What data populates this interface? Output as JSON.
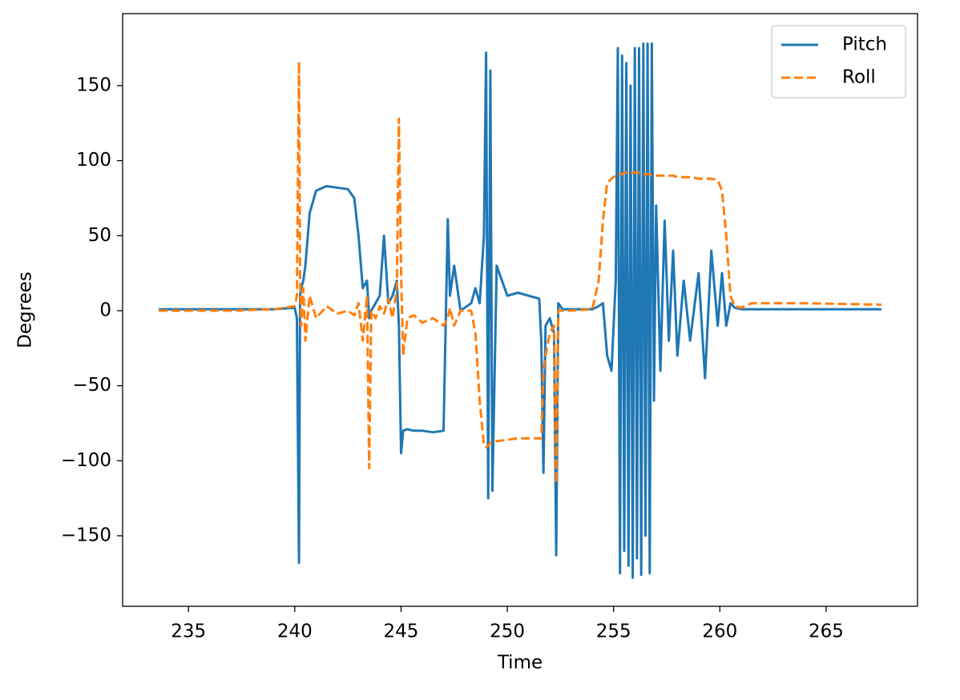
{
  "chart_data": {
    "type": "line",
    "xlabel": "Time",
    "ylabel": "Degrees",
    "x": [
      233.6,
      235,
      237,
      239,
      240.0,
      240.1,
      240.2,
      240.25,
      240.3,
      240.4,
      240.5,
      240.7,
      241.0,
      241.5,
      242.0,
      242.5,
      242.8,
      243.0,
      243.2,
      243.4,
      243.5,
      243.6,
      243.8,
      244.0,
      244.2,
      244.4,
      244.6,
      244.8,
      244.9,
      245.0,
      245.1,
      245.3,
      245.6,
      246.0,
      246.5,
      247.0,
      247.2,
      247.3,
      247.5,
      247.8,
      248.0,
      248.3,
      248.5,
      248.7,
      248.9,
      249.0,
      249.1,
      249.2,
      249.3,
      249.5,
      250.0,
      250.5,
      251.0,
      251.5,
      251.6,
      251.7,
      251.8,
      252.0,
      252.2,
      252.3,
      252.4,
      252.6,
      253.0,
      254.0,
      254.3,
      254.5,
      254.7,
      254.9,
      255.1,
      255.2,
      255.3,
      255.4,
      255.5,
      255.6,
      255.7,
      255.8,
      255.9,
      256.0,
      256.1,
      256.2,
      256.3,
      256.4,
      256.5,
      256.6,
      256.7,
      256.8,
      256.9,
      257.0,
      257.2,
      257.4,
      257.6,
      257.8,
      258.0,
      258.3,
      258.6,
      259.0,
      259.3,
      259.6,
      259.9,
      260.1,
      260.3,
      260.5,
      260.7,
      261.0,
      261.5,
      262,
      264,
      267.6
    ],
    "series": [
      {
        "name": "Pitch",
        "color": "#1f77b4",
        "dash": "solid",
        "values": [
          1,
          1,
          1,
          1,
          2,
          -5,
          -168,
          10,
          15,
          20,
          30,
          65,
          80,
          83,
          82,
          81,
          75,
          50,
          15,
          20,
          -5,
          0,
          5,
          10,
          50,
          5,
          10,
          20,
          -10,
          -95,
          -80,
          -79,
          -80,
          -80,
          -81,
          -80,
          61,
          10,
          30,
          0,
          2,
          5,
          15,
          5,
          50,
          172,
          -125,
          160,
          -120,
          30,
          10,
          12,
          10,
          8,
          -20,
          -108,
          -10,
          -5,
          -15,
          -163,
          5,
          1,
          1,
          1,
          3,
          5,
          -30,
          -40,
          20,
          175,
          -175,
          170,
          -160,
          165,
          -170,
          150,
          -178,
          175,
          -165,
          175,
          -176,
          178,
          -150,
          178,
          -175,
          178,
          -60,
          70,
          -40,
          60,
          -20,
          40,
          -30,
          20,
          -20,
          25,
          -45,
          40,
          -10,
          25,
          -10,
          5,
          2,
          1,
          1,
          1,
          1,
          1
        ]
      },
      {
        "name": "Roll",
        "color": "#ff7f0e",
        "dash": "dashed",
        "values": [
          0,
          0,
          0,
          1,
          3,
          10,
          166,
          20,
          -10,
          15,
          -20,
          10,
          -5,
          3,
          -2,
          0,
          -3,
          5,
          -20,
          10,
          -105,
          0,
          -5,
          3,
          -2,
          8,
          -5,
          15,
          128,
          25,
          -30,
          -5,
          -3,
          -8,
          -5,
          -10,
          -5,
          2,
          -10,
          0,
          0,
          0,
          -15,
          -60,
          -90,
          -91,
          -90,
          -88,
          -88,
          -87,
          -86,
          -85,
          -85,
          -85,
          -85,
          -40,
          -30,
          -15,
          -10,
          -115,
          0,
          0,
          0,
          1,
          20,
          60,
          85,
          88,
          90,
          91,
          91,
          91,
          92,
          92,
          92,
          92,
          92,
          92,
          92,
          92,
          91,
          91,
          91,
          91,
          91,
          90,
          90,
          90,
          90,
          90,
          90,
          90,
          89,
          89,
          89,
          88,
          88,
          88,
          87,
          80,
          50,
          10,
          3,
          2,
          5,
          5,
          5,
          4
        ]
      }
    ],
    "xlim": [
      231.9,
      269.3
    ],
    "xticks": [
      235,
      240,
      245,
      250,
      255,
      260,
      265
    ],
    "ylim": [
      -197,
      198
    ],
    "yticks": [
      {
        "value": -150,
        "label": "−150"
      },
      {
        "value": -100,
        "label": "−100"
      },
      {
        "value": -50,
        "label": "−50"
      },
      0,
      50,
      100,
      150
    ],
    "legend": "upper right"
  }
}
